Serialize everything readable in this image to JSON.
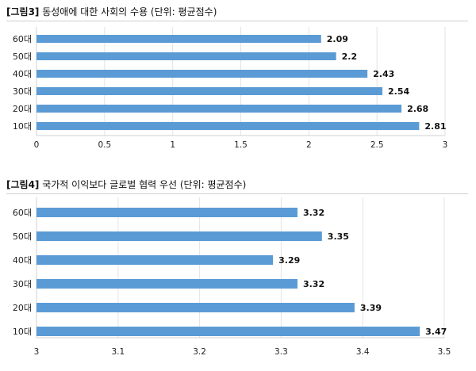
{
  "charts": [
    {
      "title_prefix": "[그림3]",
      "title_text": " 동성애에 대한 사회의 수용 (단위: 평균점수)"
    },
    {
      "title_prefix": "[그림4]",
      "title_text": " 국가적 이익보다 글로벌 협력 우선 (단위: 평균점수)"
    }
  ],
  "chart_data": [
    {
      "type": "bar",
      "orientation": "horizontal",
      "title": "[그림3] 동성애에 대한 사회의 수용 (단위: 평균점수)",
      "categories": [
        "60대",
        "50대",
        "40대",
        "30대",
        "20대",
        "10대"
      ],
      "values": [
        2.09,
        2.2,
        2.43,
        2.54,
        2.68,
        2.81
      ],
      "value_labels": [
        "2.09",
        "2.2",
        "2.43",
        "2.54",
        "2.68",
        "2.81"
      ],
      "xlim": [
        0,
        3
      ],
      "xticks": [
        0,
        0.5,
        1,
        1.5,
        2,
        2.5,
        3
      ],
      "xtick_labels": [
        "0",
        "0.5",
        "1",
        "1.5",
        "2",
        "2.5",
        "3"
      ],
      "grid": true,
      "bar_color": "#5b9bd5"
    },
    {
      "type": "bar",
      "orientation": "horizontal",
      "title": "[그림4] 국가적 이익보다 글로벌 협력 우선 (단위: 평균점수)",
      "categories": [
        "60대",
        "50대",
        "40대",
        "30대",
        "20대",
        "10대"
      ],
      "values": [
        3.32,
        3.35,
        3.29,
        3.32,
        3.39,
        3.47
      ],
      "value_labels": [
        "3.32",
        "3.35",
        "3.29",
        "3.32",
        "3.39",
        "3.47"
      ],
      "xlim": [
        3,
        3.5
      ],
      "xticks": [
        3,
        3.1,
        3.2,
        3.3,
        3.4,
        3.5
      ],
      "xtick_labels": [
        "3",
        "3.1",
        "3.2",
        "3.3",
        "3.4",
        "3.5"
      ],
      "grid": true,
      "bar_color": "#5b9bd5"
    }
  ]
}
